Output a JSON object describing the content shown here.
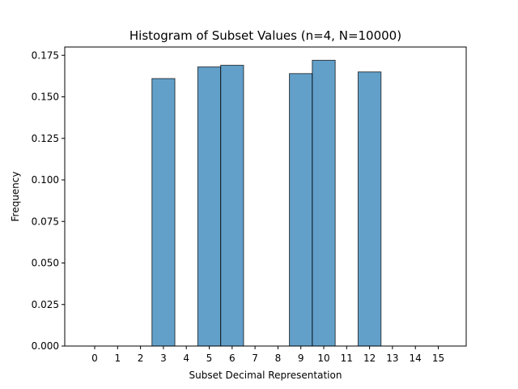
{
  "chart_data": {
    "type": "bar",
    "title": "Histogram of Subset Values (n=4, N=10000)",
    "xlabel": "Subset Decimal Representation",
    "ylabel": "Frequency",
    "categories": [
      "0",
      "1",
      "2",
      "3",
      "4",
      "5",
      "6",
      "7",
      "8",
      "9",
      "10",
      "11",
      "12",
      "13",
      "14",
      "15"
    ],
    "values": [
      0,
      0,
      0,
      0.161,
      0,
      0.168,
      0.169,
      0,
      0,
      0.164,
      0.172,
      0,
      0.165,
      0,
      0,
      0
    ],
    "ylim": [
      0,
      0.18
    ],
    "yticks": [
      "0.000",
      "0.025",
      "0.050",
      "0.075",
      "0.100",
      "0.125",
      "0.150",
      "0.175"
    ],
    "grid": false,
    "colors": {
      "bar_fill": "#1f77b4",
      "bar_edge": "#000000"
    }
  }
}
